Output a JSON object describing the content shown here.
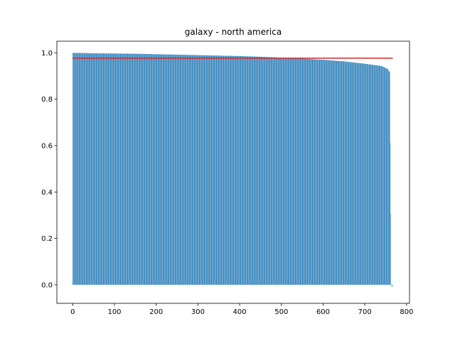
{
  "chart_data": {
    "type": "bar",
    "title": "galaxy - north america",
    "xlabel": "",
    "ylabel": "",
    "xlim": [
      -38,
      807
    ],
    "ylim": [
      -0.08,
      1.05
    ],
    "xticks": [
      0,
      100,
      200,
      300,
      400,
      500,
      600,
      700,
      800
    ],
    "yticks": [
      0.0,
      0.2,
      0.4,
      0.6,
      0.8,
      1.0
    ],
    "bar_color": "#1f77b4",
    "sorted_descending": true,
    "bar_count": 767,
    "profile": [
      {
        "x": 0,
        "y": 1.0
      },
      {
        "x": 50,
        "y": 0.998
      },
      {
        "x": 100,
        "y": 0.997
      },
      {
        "x": 150,
        "y": 0.996
      },
      {
        "x": 200,
        "y": 0.994
      },
      {
        "x": 250,
        "y": 0.992
      },
      {
        "x": 300,
        "y": 0.99
      },
      {
        "x": 350,
        "y": 0.988
      },
      {
        "x": 400,
        "y": 0.986
      },
      {
        "x": 450,
        "y": 0.983
      },
      {
        "x": 500,
        "y": 0.979
      },
      {
        "x": 550,
        "y": 0.975
      },
      {
        "x": 600,
        "y": 0.97
      },
      {
        "x": 650,
        "y": 0.963
      },
      {
        "x": 700,
        "y": 0.953
      },
      {
        "x": 740,
        "y": 0.943
      },
      {
        "x": 755,
        "y": 0.93
      },
      {
        "x": 760,
        "y": 0.915
      },
      {
        "x": 763,
        "y": 0.0
      },
      {
        "x": 766,
        "y": -0.01
      }
    ],
    "reference_line": {
      "y": 0.977,
      "x_start": 0,
      "x_end": 767,
      "color": "#d62728"
    },
    "grid": false
  }
}
